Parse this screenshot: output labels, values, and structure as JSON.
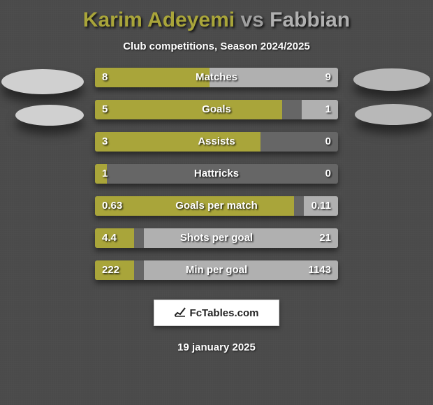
{
  "title": {
    "player1": "Karim Adeyemi",
    "vs": "vs",
    "player2": "Fabbian"
  },
  "subtitle": "Club competitions, Season 2024/2025",
  "colors": {
    "player1": "#a9a53a",
    "player2": "#b0b0b0",
    "track": "#666666",
    "title_p1": "#a9a53a",
    "title_vs": "#a0a0a0",
    "title_p2": "#b0b0b0",
    "ellipse_left": "#d0d0d0",
    "ellipse_right": "#b8b8b8"
  },
  "stats": [
    {
      "label": "Matches",
      "left_value": "8",
      "right_value": "9",
      "left_pct": 47,
      "right_pct": 53
    },
    {
      "label": "Goals",
      "left_value": "5",
      "right_value": "1",
      "left_pct": 77,
      "right_pct": 15
    },
    {
      "label": "Assists",
      "left_value": "3",
      "right_value": "0",
      "left_pct": 68,
      "right_pct": 0
    },
    {
      "label": "Hattricks",
      "left_value": "1",
      "right_value": "0",
      "left_pct": 5,
      "right_pct": 0
    },
    {
      "label": "Goals per match",
      "left_value": "0.63",
      "right_value": "0.11",
      "left_pct": 82,
      "right_pct": 14
    },
    {
      "label": "Shots per goal",
      "left_value": "4.4",
      "right_value": "21",
      "left_pct": 16,
      "right_pct": 80
    },
    {
      "label": "Min per goal",
      "left_value": "222",
      "right_value": "1143",
      "left_pct": 16,
      "right_pct": 80
    }
  ],
  "logo_text": "FcTables.com",
  "date": "19 january 2025"
}
